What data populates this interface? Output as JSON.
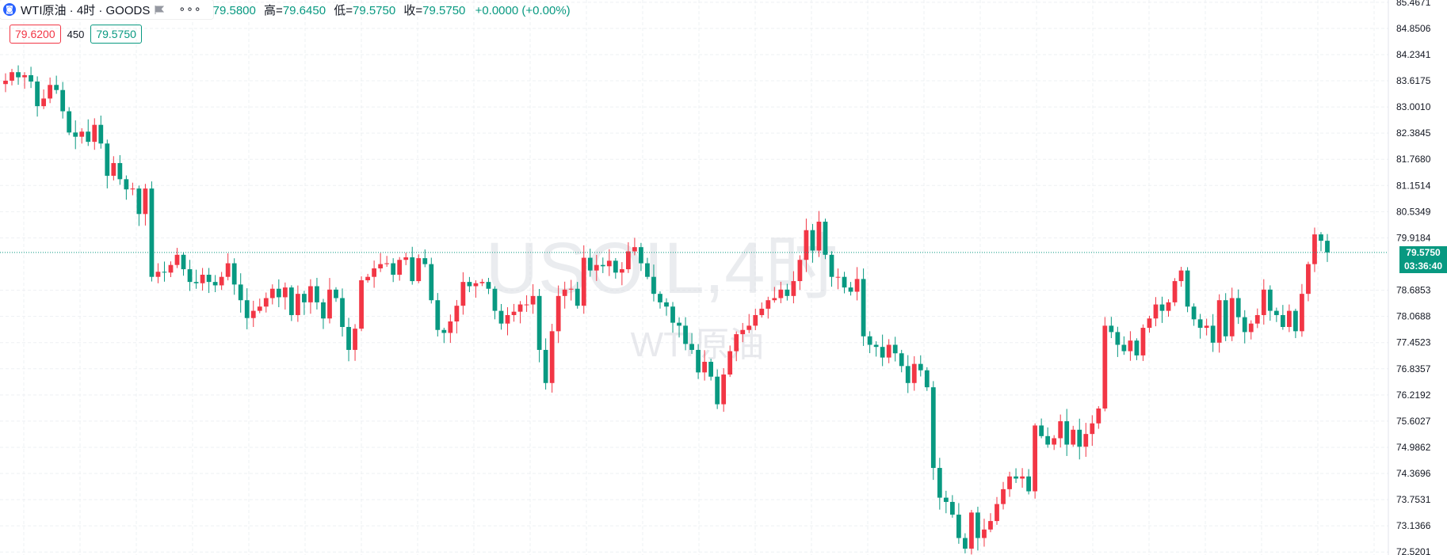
{
  "header": {
    "symbol_icon": "symbol-logo-icon",
    "title": "WTI原油 · 4时 · GOODS",
    "flag_icon": "flag-icon",
    "more_icon": "more-dots-icon",
    "more_text": "∘∘∘",
    "open_value": "79.5800",
    "high_label": "高=",
    "high_value": "79.6450",
    "low_label": "低=",
    "low_value": "79.5750",
    "close_label": "收=",
    "close_value": "79.5750",
    "change": "+0.0000 (+0.00%)",
    "sell_price": "79.6200",
    "spread": "450",
    "buy_price": "79.5750"
  },
  "watermark": {
    "main": "USOIL,4时",
    "sub": "WTI原油"
  },
  "last_price": {
    "value": "79.5750",
    "countdown": "03:36:40"
  },
  "colors": {
    "up": "#f23645",
    "down": "#089981",
    "grid": "#eef0f3",
    "axis_text": "#131722"
  },
  "chart_data": {
    "type": "candlestick",
    "title": "",
    "y_ticks": [
      "85.4671",
      "84.8506",
      "84.2341",
      "83.6175",
      "83.0010",
      "82.3845",
      "81.7680",
      "81.1514",
      "80.5349",
      "79.9184",
      "78.6853",
      "78.0688",
      "77.4523",
      "76.8357",
      "76.2192",
      "75.6027",
      "74.9862",
      "74.3696",
      "73.7531",
      "73.1366",
      "72.5201"
    ],
    "ylim": [
      72.45,
      85.52
    ],
    "last": 79.575,
    "closes": [
      83.62,
      83.82,
      83.7,
      83.75,
      83.6,
      83.02,
      83.2,
      83.52,
      83.4,
      82.9,
      82.4,
      82.3,
      82.42,
      82.18,
      82.58,
      82.14,
      81.38,
      81.68,
      81.3,
      81.06,
      81.08,
      80.48,
      81.08,
      79.0,
      79.12,
      79.1,
      79.28,
      79.52,
      79.18,
      78.88,
      78.85,
      79.05,
      78.88,
      78.8,
      79.0,
      79.32,
      78.82,
      78.45,
      78.03,
      78.2,
      78.3,
      78.5,
      78.72,
      78.52,
      78.75,
      78.1,
      78.6,
      78.4,
      78.78,
      78.4,
      78.02,
      78.7,
      78.5,
      77.82,
      77.28,
      77.78,
      78.92,
      79.0,
      79.2,
      79.3,
      79.32,
      79.05,
      79.4,
      79.46,
      78.9,
      79.44,
      79.3,
      78.45,
      77.75,
      77.68,
      77.95,
      78.32,
      78.88,
      78.78,
      78.85,
      78.88,
      78.72,
      78.2,
      77.9,
      78.1,
      78.18,
      78.35,
      78.35,
      78.55,
      77.28,
      76.5,
      77.72,
      78.55,
      78.7,
      78.72,
      78.32,
      79.45,
      79.15,
      79.28,
      79.25,
      79.38,
      79.1,
      79.18,
      79.6,
      79.7,
      79.32,
      79.0,
      78.6,
      78.4,
      78.3,
      77.92,
      77.85,
      77.42,
      77.28,
      76.75,
      77.0,
      76.65,
      76.0,
      76.7,
      77.25,
      77.65,
      77.75,
      77.85,
      78.1,
      78.25,
      78.45,
      78.5,
      78.7,
      78.55,
      78.9,
      79.4,
      80.1,
      79.62,
      80.3,
      79.52,
      79.0,
      79.0,
      78.75,
      78.65,
      78.95,
      77.6,
      77.4,
      77.35,
      77.1,
      77.4,
      77.2,
      76.9,
      76.5,
      76.95,
      76.8,
      76.4,
      74.5,
      73.8,
      73.7,
      73.4,
      72.85,
      72.6,
      73.45,
      72.85,
      73.05,
      73.25,
      73.65,
      74.0,
      74.3,
      74.25,
      74.3,
      73.95,
      75.5,
      75.25,
      75.05,
      75.2,
      75.6,
      75.05,
      75.4,
      75.0,
      75.3,
      75.55,
      75.9,
      77.85,
      77.7,
      77.4,
      77.25,
      77.5,
      77.15,
      77.8,
      78.02,
      78.35,
      78.2,
      78.4,
      78.9,
      79.15,
      78.3,
      78.0,
      77.8,
      77.85,
      77.45,
      78.45,
      77.6,
      78.5,
      78.05,
      77.7,
      77.9,
      78.1,
      78.7,
      78.2,
      78.1,
      77.82,
      78.2,
      77.72,
      78.6,
      79.3,
      80.0,
      79.85,
      79.575
    ]
  }
}
